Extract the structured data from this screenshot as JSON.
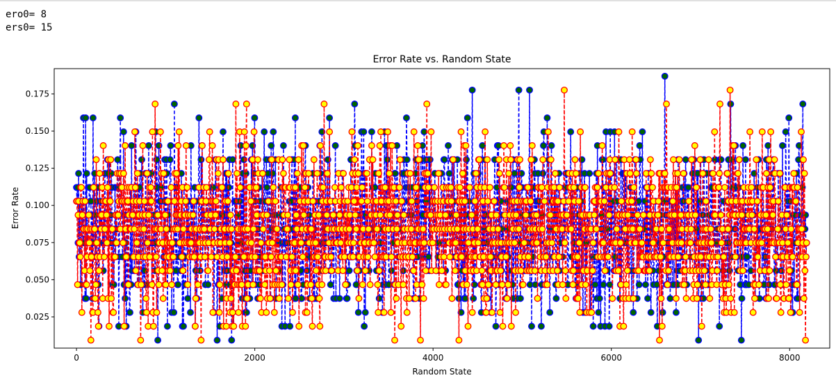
{
  "console": {
    "line1": "ero0= 8",
    "line2": "ers0= 15"
  },
  "colors": {
    "blue_series_line": "#0000ff",
    "blue_series_marker_face": "#006400",
    "red_series_line": "#ff0000",
    "red_series_marker_face": "#ffff00"
  },
  "chart_data": {
    "type": "line",
    "title": "Error Rate vs. Random State",
    "xlabel": "Random State",
    "ylabel": "Error Rate",
    "xlim": [
      -250,
      8450
    ],
    "ylim": [
      0.004,
      0.192
    ],
    "x_ticks": [
      0,
      2000,
      4000,
      6000,
      8000
    ],
    "x_tick_labels": [
      "0",
      "2000",
      "4000",
      "6000",
      "8000"
    ],
    "y_ticks": [
      0.025,
      0.05,
      0.075,
      0.1,
      0.125,
      0.15,
      0.175
    ],
    "y_tick_labels": [
      "0.025",
      "0.050",
      "0.075",
      "0.100",
      "0.125",
      "0.150",
      "0.175"
    ],
    "grid": false,
    "legend": "none",
    "series": [
      {
        "color": "#0000ff",
        "marker_face": "#006400",
        "linestyle": "dashed",
        "x_range": [
          0,
          8192
        ],
        "y_levels": [
          0.0093,
          0.0187,
          0.028,
          0.0374,
          0.0467,
          0.0561,
          0.0654,
          0.0748,
          0.0841,
          0.0935,
          0.1028,
          0.1121,
          0.1215,
          0.1308,
          0.1402,
          0.1495,
          0.1589,
          0.1682,
          0.1776,
          0.1869
        ],
        "notable_points": [
          {
            "x": 6600,
            "y": 0.1869
          },
          {
            "x": 4440,
            "y": 0.1776
          },
          {
            "x": 4960,
            "y": 0.1776
          },
          {
            "x": 5080,
            "y": 0.1776
          },
          {
            "x": 1100,
            "y": 0.1682
          },
          {
            "x": 3120,
            "y": 0.1682
          },
          {
            "x": 8150,
            "y": 0.1682
          },
          {
            "x": 7340,
            "y": 0.1682
          },
          {
            "x": 80,
            "y": 0.1589
          },
          {
            "x": 100,
            "y": 0.1589
          },
          {
            "x": 1580,
            "y": 0.0093
          },
          {
            "x": 1740,
            "y": 0.0093
          },
          {
            "x": 7460,
            "y": 0.0093
          },
          {
            "x": 6980,
            "y": 0.0093
          },
          {
            "x": 910,
            "y": 0.0093
          }
        ]
      },
      {
        "color": "#ff0000",
        "marker_face": "#ffff00",
        "linestyle": "dashed",
        "x_range": [
          0,
          8192
        ],
        "y_levels": [
          0.0093,
          0.0187,
          0.028,
          0.0374,
          0.0467,
          0.0561,
          0.0654,
          0.0748,
          0.0841,
          0.0935,
          0.1028,
          0.1121,
          0.1215,
          0.1308,
          0.1402,
          0.1495,
          0.1589,
          0.1682,
          0.1776
        ],
        "notable_points": [
          {
            "x": 5470,
            "y": 0.1776
          },
          {
            "x": 7330,
            "y": 0.1776
          },
          {
            "x": 880,
            "y": 0.1682
          },
          {
            "x": 1790,
            "y": 0.1682
          },
          {
            "x": 1910,
            "y": 0.1682
          },
          {
            "x": 2780,
            "y": 0.1682
          },
          {
            "x": 3930,
            "y": 0.1682
          },
          {
            "x": 6620,
            "y": 0.1682
          },
          {
            "x": 7220,
            "y": 0.1682
          },
          {
            "x": 160,
            "y": 0.0093
          },
          {
            "x": 720,
            "y": 0.0093
          },
          {
            "x": 1400,
            "y": 0.0093
          },
          {
            "x": 3570,
            "y": 0.0093
          },
          {
            "x": 3860,
            "y": 0.0093
          },
          {
            "x": 4290,
            "y": 0.0093
          },
          {
            "x": 6540,
            "y": 0.0093
          },
          {
            "x": 8180,
            "y": 0.0093
          }
        ]
      }
    ]
  }
}
